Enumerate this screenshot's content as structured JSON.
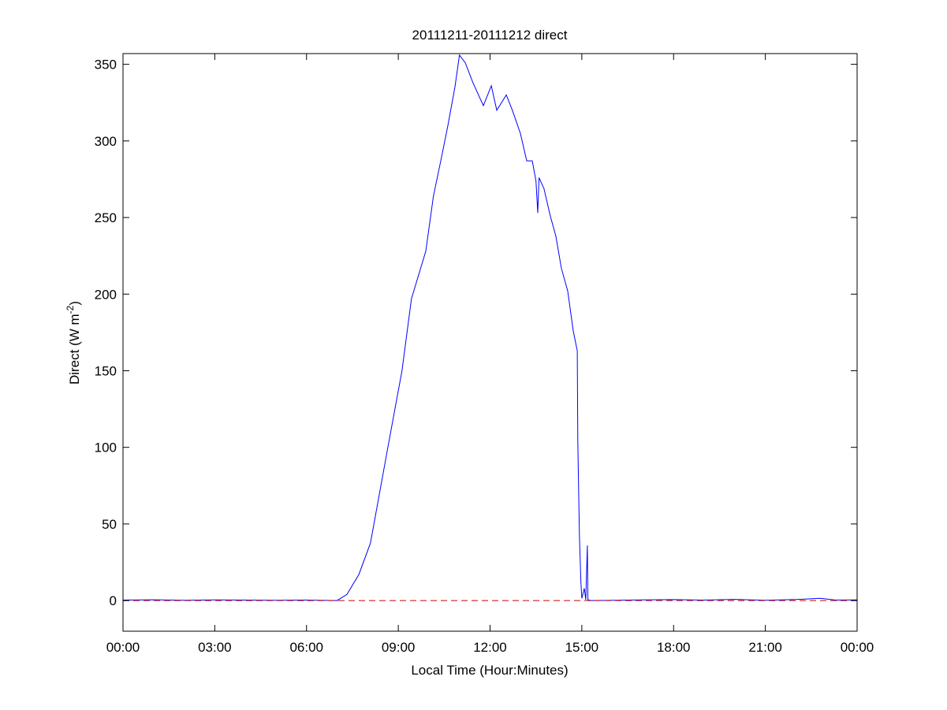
{
  "chart_data": {
    "type": "line",
    "title": "20111211-20111212 direct",
    "xlabel": "Local Time (Hour:Minutes)",
    "ylabel": "Direct (W m",
    "ylabel_sup": "-2",
    "ylabel_close": ")",
    "xlim_hours": [
      0,
      24
    ],
    "ylim": [
      -20,
      357
    ],
    "x_ticks": [
      "00:00",
      "03:00",
      "06:00",
      "09:00",
      "12:00",
      "15:00",
      "18:00",
      "21:00",
      "00:00"
    ],
    "y_ticks": [
      0,
      50,
      100,
      150,
      200,
      250,
      300,
      350
    ],
    "grid": false,
    "series": [
      {
        "color": "#0000ff",
        "style": "solid",
        "x_hours": [
          0,
          1,
          2,
          3,
          4,
          5,
          6,
          7.0,
          7.32,
          7.71,
          8.09,
          8.66,
          9.12,
          9.43,
          9.9,
          10.15,
          10.41,
          10.62,
          10.85,
          11.0,
          11.19,
          11.44,
          11.78,
          12.04,
          12.22,
          12.53,
          12.73,
          12.99,
          13.2,
          13.38,
          13.5,
          13.56,
          13.6,
          13.76,
          13.97,
          14.15,
          14.33,
          14.54,
          14.72,
          14.85,
          14.87,
          14.92,
          14.97,
          15.0,
          15.08,
          15.13,
          15.18,
          15.2,
          15.3,
          17,
          18,
          19,
          20,
          21,
          22,
          22.8,
          23.3,
          24
        ],
        "values": [
          0.3,
          0.5,
          0.2,
          0.4,
          0.3,
          0.2,
          0.3,
          0,
          4,
          17,
          37.5,
          100,
          150,
          197,
          228,
          264,
          289,
          310,
          335,
          356,
          351,
          338,
          323,
          336,
          320,
          330,
          320,
          305,
          287,
          287,
          274,
          253,
          276,
          269,
          251,
          238,
          217,
          202,
          176,
          163,
          104,
          43,
          12,
          1.5,
          8,
          0.5,
          36,
          0.5,
          0,
          0.4,
          0.6,
          0.3,
          0.8,
          0.2,
          0.7,
          1.5,
          0.3,
          0.4
        ]
      },
      {
        "color": "#cc0000",
        "style": "dashed",
        "x_hours": [
          0,
          24
        ],
        "values": [
          0,
          0
        ]
      }
    ]
  }
}
